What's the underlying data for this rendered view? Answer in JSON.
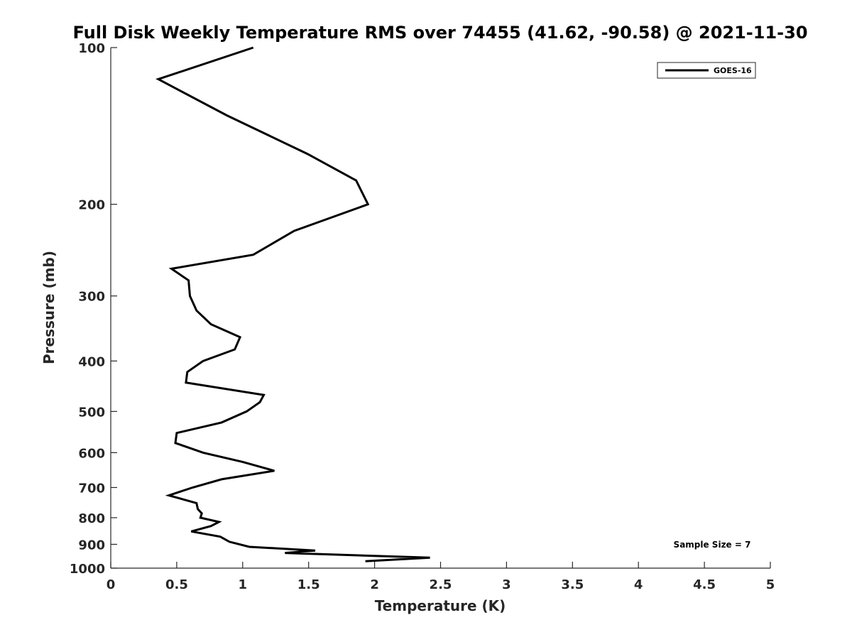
{
  "chart_data": {
    "type": "line",
    "title": "Full Disk Weekly Temperature RMS over 74455 (41.62, -90.58) @ 2021-11-30",
    "xlabel": "Temperature (K)",
    "ylabel": "Pressure (mb)",
    "xlim": [
      0,
      5
    ],
    "ylim": [
      1000,
      100
    ],
    "yscale": "log",
    "y_reversed": true,
    "grid": false,
    "x_ticks": [
      "0",
      "0.5",
      "1",
      "1.5",
      "2",
      "2.5",
      "3",
      "3.5",
      "4",
      "4.5",
      "5"
    ],
    "y_ticks": [
      "100",
      "200",
      "300",
      "400",
      "500",
      "600",
      "700",
      "800",
      "900",
      "1000"
    ],
    "legend": {
      "position": "top-right",
      "entries": [
        "GOES-16"
      ]
    },
    "annotation": "Sample Size = 7",
    "series": [
      {
        "name": "GOES-16",
        "color": "#000000",
        "points": [
          [
            1.08,
            100
          ],
          [
            0.36,
            115
          ],
          [
            0.88,
            135
          ],
          [
            1.49,
            160
          ],
          [
            1.86,
            180
          ],
          [
            1.95,
            200
          ],
          [
            1.39,
            225
          ],
          [
            1.08,
            250
          ],
          [
            0.46,
            266
          ],
          [
            0.59,
            280
          ],
          [
            0.6,
            300
          ],
          [
            0.65,
            320
          ],
          [
            0.76,
            340
          ],
          [
            0.98,
            360
          ],
          [
            0.94,
            380
          ],
          [
            0.7,
            400
          ],
          [
            0.58,
            420
          ],
          [
            0.57,
            440
          ],
          [
            1.16,
            465
          ],
          [
            1.13,
            480
          ],
          [
            1.03,
            500
          ],
          [
            0.84,
            525
          ],
          [
            0.5,
            550
          ],
          [
            0.49,
            575
          ],
          [
            0.7,
            600
          ],
          [
            1.0,
            625
          ],
          [
            1.24,
            650
          ],
          [
            0.84,
            675
          ],
          [
            0.62,
            700
          ],
          [
            0.44,
            725
          ],
          [
            0.65,
            750
          ],
          [
            0.66,
            770
          ],
          [
            0.69,
            785
          ],
          [
            0.68,
            800
          ],
          [
            0.82,
            815
          ],
          [
            0.76,
            830
          ],
          [
            0.61,
            850
          ],
          [
            0.83,
            870
          ],
          [
            0.9,
            890
          ],
          [
            1.05,
            910
          ],
          [
            1.55,
            925
          ],
          [
            1.32,
            935
          ],
          [
            2.42,
            955
          ],
          [
            1.93,
            970
          ]
        ]
      }
    ]
  }
}
